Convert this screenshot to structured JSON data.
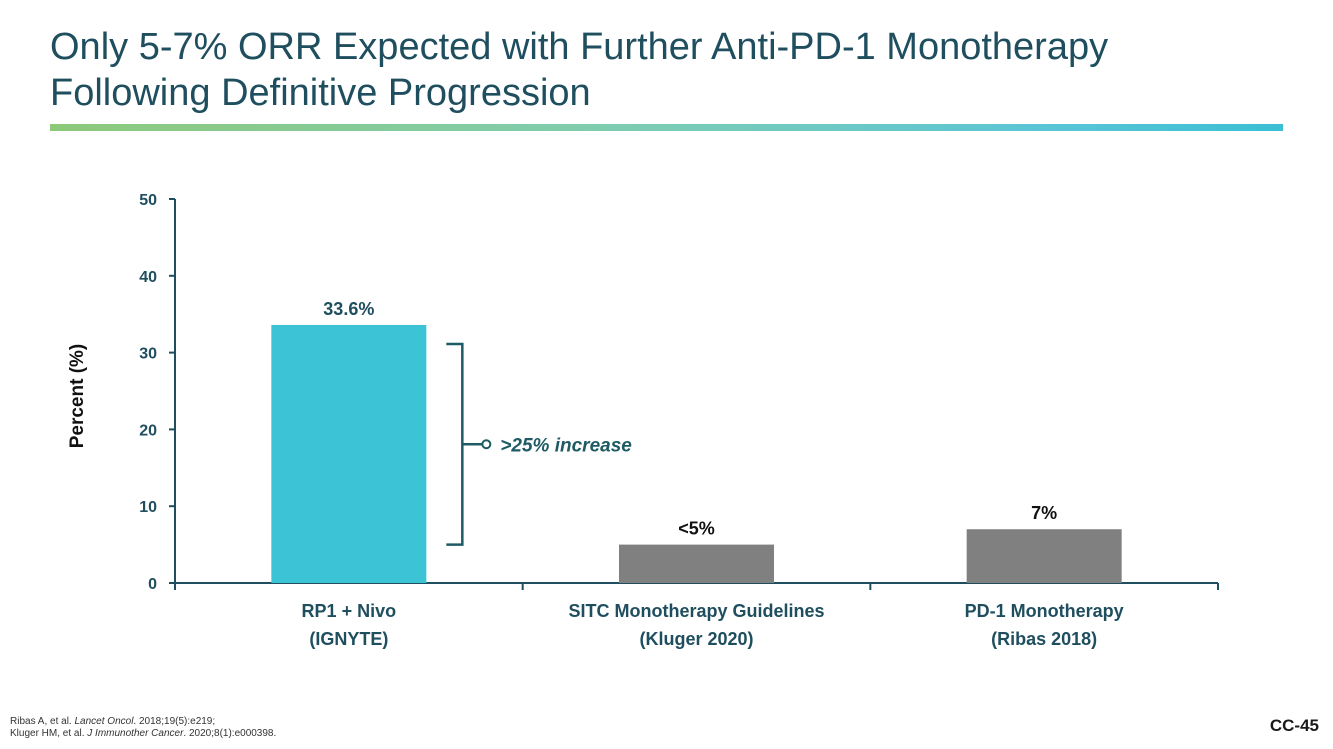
{
  "slide": {
    "title_line1": "Only 5-7% ORR Expected with Further Anti-PD-1 Monotherapy",
    "title_line2": "Following Definitive Progression",
    "slide_number": "CC-45"
  },
  "footnotes": [
    {
      "pre": "Ribas A, et al. ",
      "journal": "Lancet Oncol",
      "post": ". 2018;19(5):e219;"
    },
    {
      "pre": "Kluger HM, et al. ",
      "journal": "J Immunother Cancer",
      "post": ". 2020;8(1):e000398."
    }
  ],
  "colors": {
    "primary_bar": "#3cc4d6",
    "comparator_bar": "#808080",
    "axis": "#1f4e5f",
    "annotation": "#1f5b64",
    "label": "#1f4e5f"
  },
  "chart_data": {
    "type": "bar",
    "title": "",
    "xlabel": "",
    "ylabel": "Percent (%)",
    "ylim": [
      0,
      50
    ],
    "yticks": [
      0,
      10,
      20,
      30,
      40,
      50
    ],
    "grid": false,
    "categories": [
      {
        "line1": "RP1 + Nivo",
        "line2": "(IGNYTE)"
      },
      {
        "line1": "SITC Monotherapy Guidelines",
        "line2": "(Kluger 2020)"
      },
      {
        "line1": "PD-1 Monotherapy",
        "line2": "(Ribas 2018)"
      }
    ],
    "values": [
      33.6,
      5,
      7
    ],
    "value_labels": [
      "33.6%",
      "<5%",
      "7%"
    ],
    "annotations": [
      {
        "text": ">25% increase",
        "from_value": 33.6,
        "to_value": 5
      }
    ]
  }
}
